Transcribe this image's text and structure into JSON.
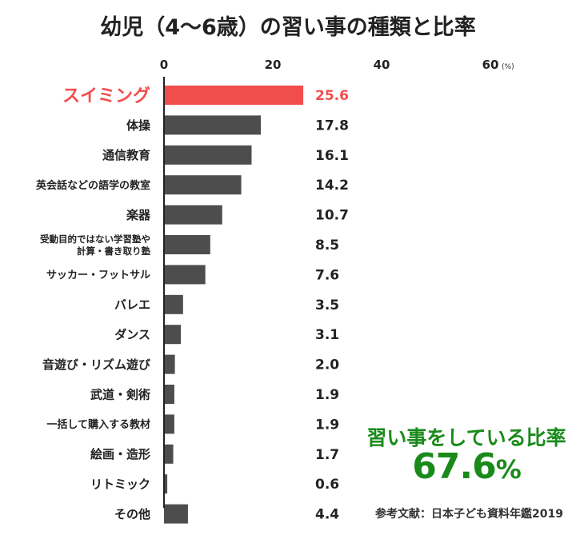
{
  "title": "幼児（4〜6歳）の習い事の種類と比率",
  "chart_data": {
    "type": "bar",
    "orientation": "horizontal",
    "title": "幼児（4〜6歳）の習い事の種類と比率",
    "xlim": [
      0,
      60
    ],
    "x_ticks": [
      "0",
      "20",
      "40",
      "60"
    ],
    "x_unit": "(%)",
    "categories": [
      [
        "スイミング"
      ],
      [
        "体操"
      ],
      [
        "通信教育"
      ],
      [
        "英会話などの語学の教室"
      ],
      [
        "楽器"
      ],
      [
        "受動目的ではない学習塾や",
        "計算・書き取り塾"
      ],
      [
        "サッカー・フットサル"
      ],
      [
        "バレエ"
      ],
      [
        "ダンス"
      ],
      [
        "音遊び・リズム遊び"
      ],
      [
        "武道・剣術"
      ],
      [
        "一括して購入する教材"
      ],
      [
        "絵画・造形"
      ],
      [
        "リトミック"
      ],
      [
        "その他"
      ]
    ],
    "values": [
      25.6,
      17.8,
      16.1,
      14.2,
      10.7,
      8.5,
      7.6,
      3.5,
      3.1,
      2.0,
      1.9,
      1.9,
      1.7,
      0.6,
      4.4
    ],
    "value_labels": [
      "25.6",
      "17.8",
      "16.1",
      "14.2",
      "10.7",
      "8.5",
      "7.6",
      "3.5",
      "3.1",
      "2.0",
      "1.9",
      "1.9",
      "1.7",
      "0.6",
      "4.4"
    ],
    "highlight_index": 0
  },
  "summary": {
    "label": "習い事をしている比率",
    "value": "67.6",
    "unit": "%"
  },
  "source": "参考文献：日本子ども資料年鑑2019",
  "colors": {
    "bar": "#4d4d4d",
    "highlight": "#f24d4d",
    "summary": "#1a8a1a",
    "text": "#222222",
    "axis": "#222222"
  }
}
